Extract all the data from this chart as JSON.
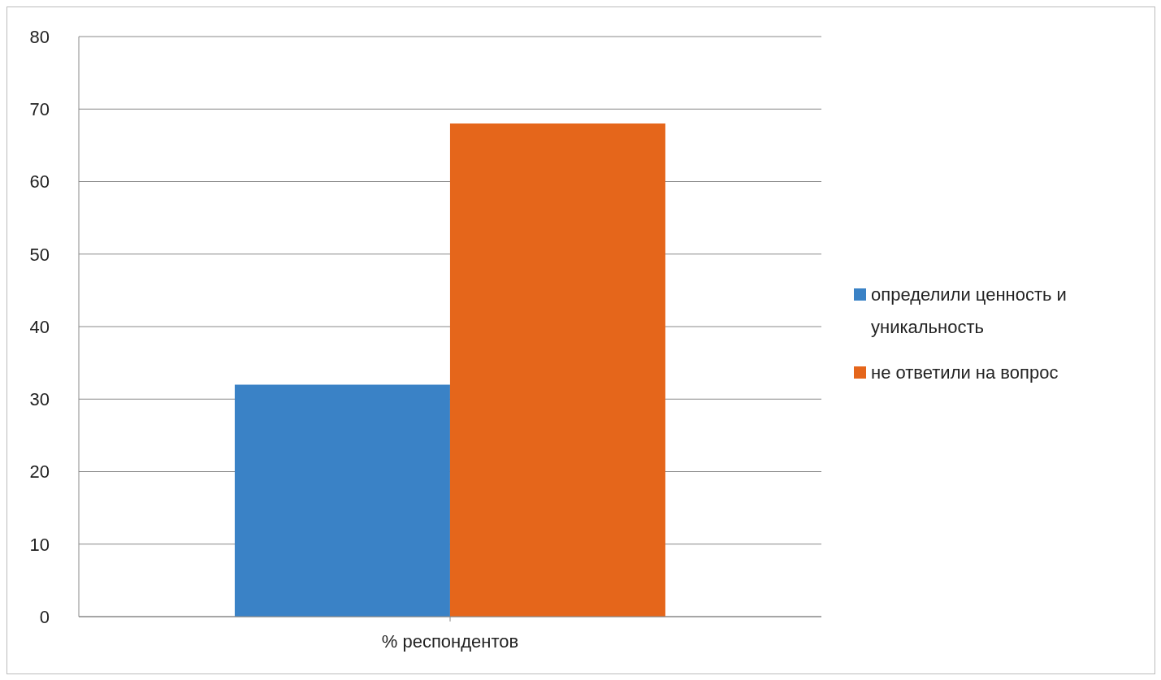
{
  "chart_data": {
    "type": "bar",
    "categories": [
      "% респондентов"
    ],
    "series": [
      {
        "name": "определили ценность и уникальность",
        "color": "#3a82c6",
        "values": [
          32
        ]
      },
      {
        "name": "не ответили на вопрос",
        "color": "#e5661b",
        "values": [
          68
        ]
      }
    ],
    "ylim": [
      0,
      80
    ],
    "yticks": [
      0,
      10,
      20,
      30,
      40,
      50,
      60,
      70,
      80
    ],
    "grid": "y",
    "legend": "right"
  }
}
